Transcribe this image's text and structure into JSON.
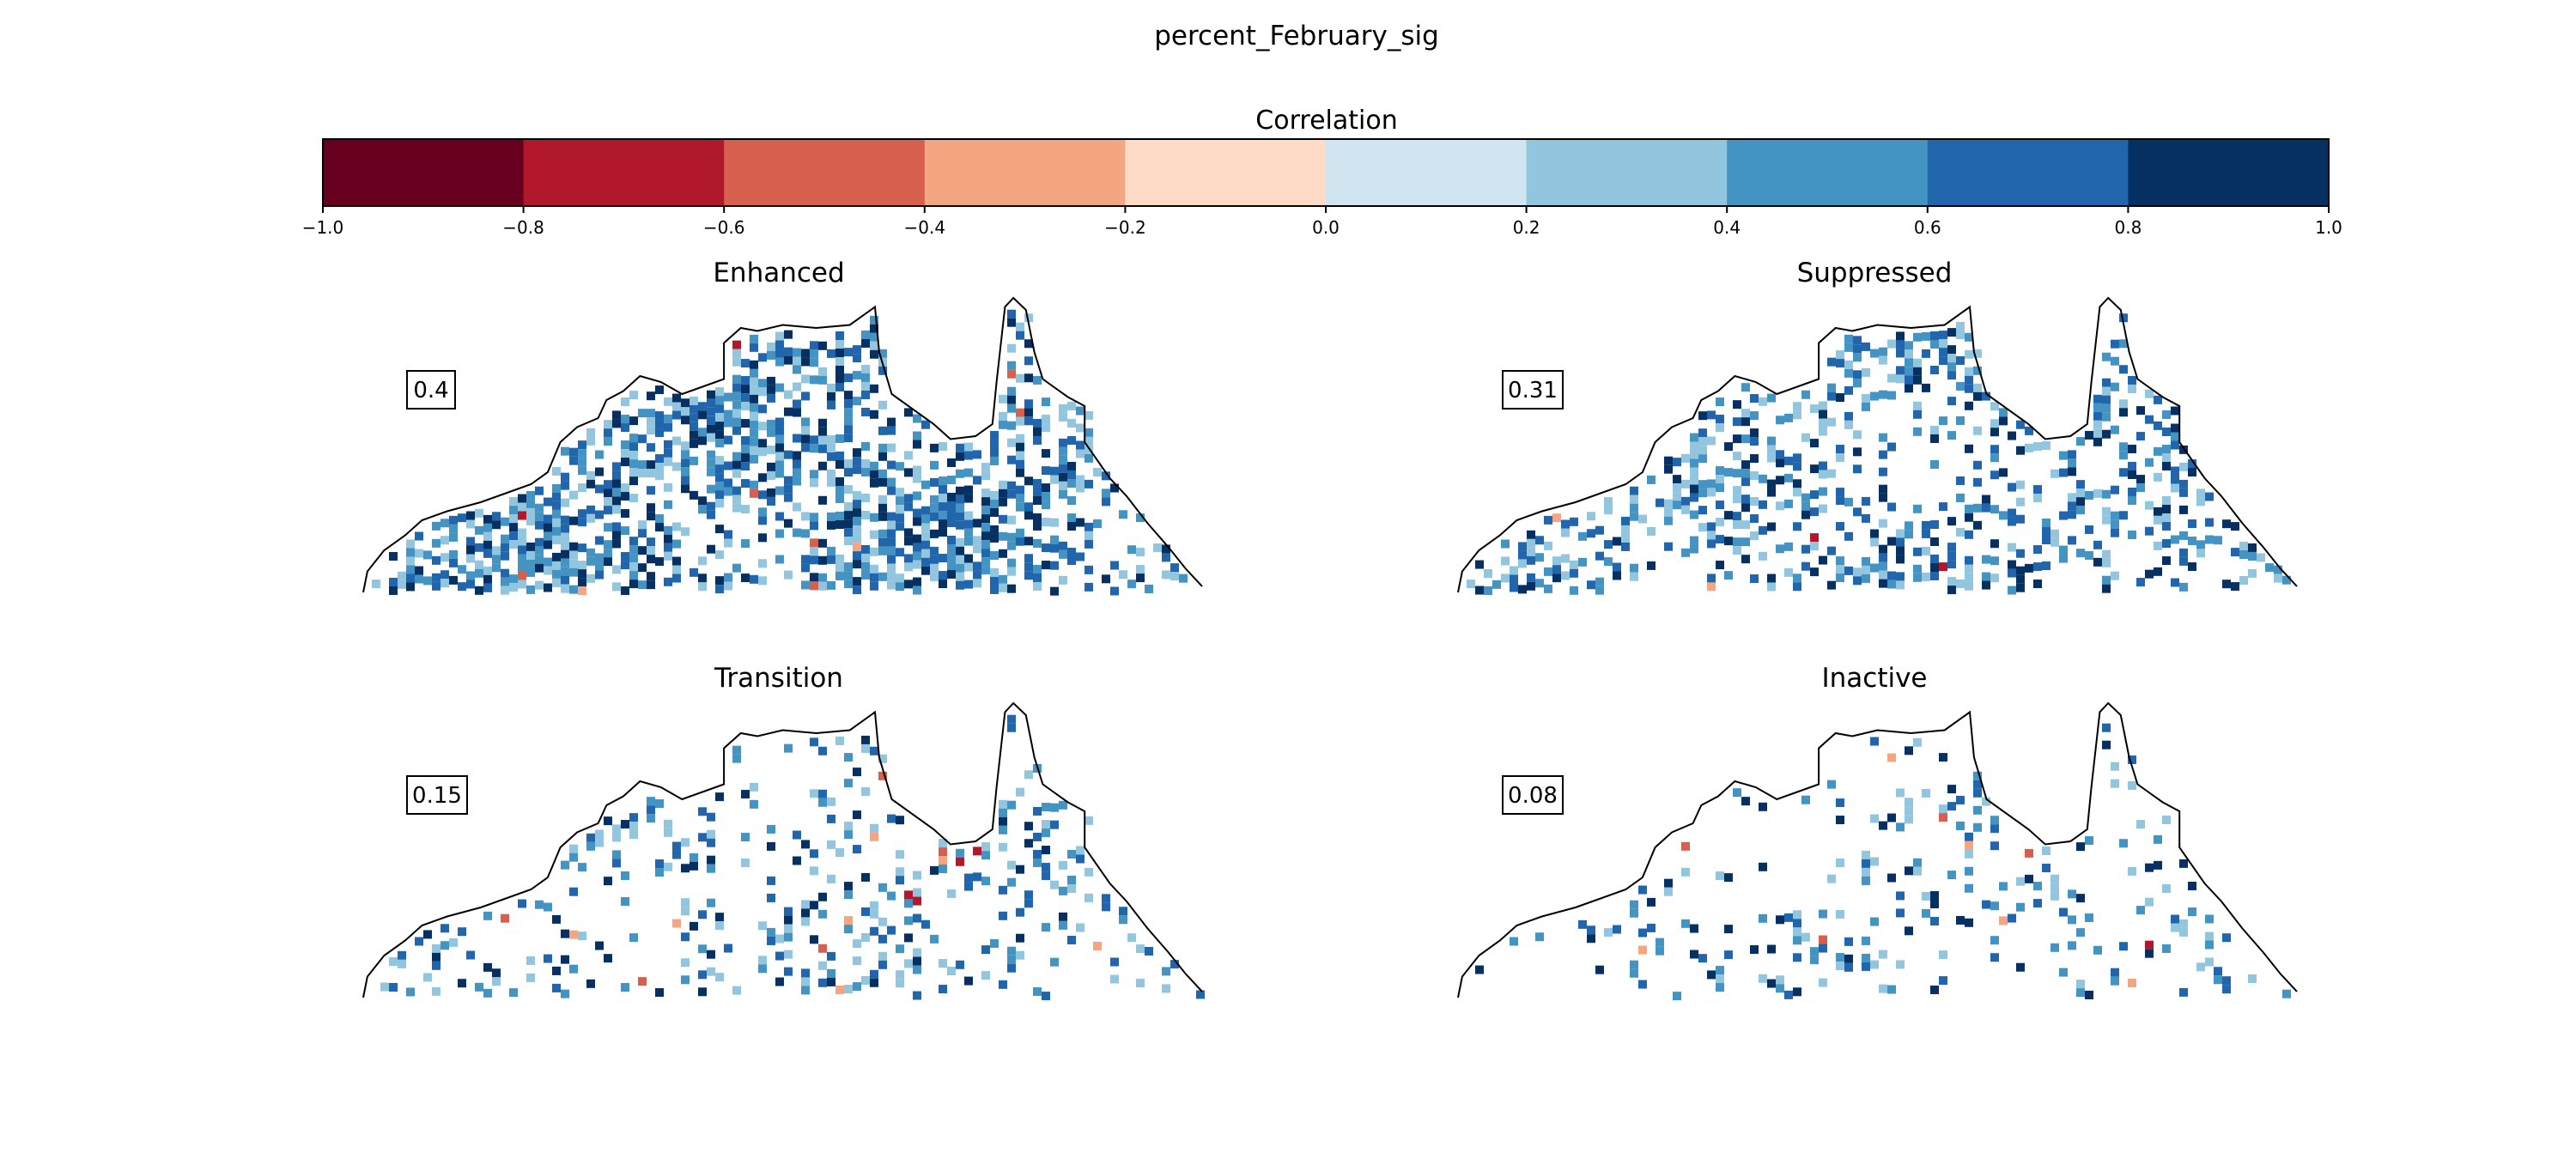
{
  "figure": {
    "title": "percent_February_sig"
  },
  "colorbar": {
    "label": "Correlation",
    "ticks": [
      "−1.0",
      "−0.8",
      "−0.6",
      "−0.4",
      "−0.2",
      "0.0",
      "0.2",
      "0.4",
      "0.6",
      "0.8",
      "1.0"
    ],
    "bins": [
      {
        "from": -1.0,
        "to": -0.8,
        "color": "#67001f"
      },
      {
        "from": -0.8,
        "to": -0.6,
        "color": "#b2182b"
      },
      {
        "from": -0.6,
        "to": -0.4,
        "color": "#d6604d"
      },
      {
        "from": -0.4,
        "to": -0.2,
        "color": "#f4a582"
      },
      {
        "from": -0.2,
        "to": 0.0,
        "color": "#fddbc7"
      },
      {
        "from": 0.0,
        "to": 0.2,
        "color": "#d1e5f0"
      },
      {
        "from": 0.2,
        "to": 0.4,
        "color": "#92c5de"
      },
      {
        "from": 0.4,
        "to": 0.6,
        "color": "#4393c3"
      },
      {
        "from": 0.6,
        "to": 0.8,
        "color": "#2166ac"
      },
      {
        "from": 0.8,
        "to": 1.0,
        "color": "#053061"
      }
    ]
  },
  "panels": [
    {
      "title": "Enhanced",
      "value": "0.4",
      "density": 0.62
    },
    {
      "title": "Suppressed",
      "value": "0.31",
      "density": 0.42
    },
    {
      "title": "Transition",
      "value": "0.15",
      "density": 0.25
    },
    {
      "title": "Inactive",
      "value": "0.08",
      "density": 0.16
    }
  ]
}
